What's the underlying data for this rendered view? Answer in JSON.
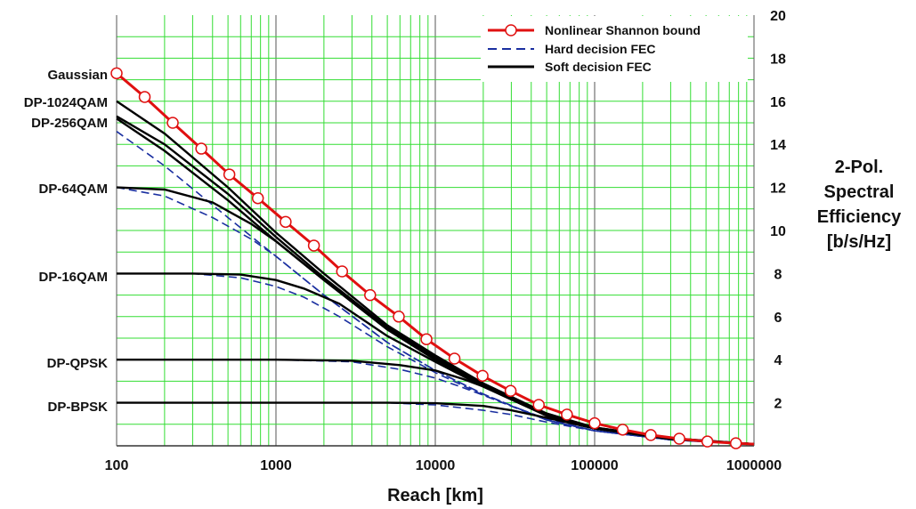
{
  "chart_data": {
    "type": "line",
    "title": "",
    "xlabel": "Reach [km]",
    "ylabel": [
      "2-Pol.",
      "Spectral",
      "Efficiency",
      "[b/s/Hz]"
    ],
    "xscale": "log",
    "xlim": [
      100,
      1000000
    ],
    "ylim": [
      0,
      20
    ],
    "x_ticks": [
      100,
      1000,
      10000,
      100000,
      1000000
    ],
    "x_tick_labels": [
      "100",
      "1000",
      "10000",
      "100000",
      "1000000"
    ],
    "y_ticks": [
      2,
      4,
      6,
      8,
      10,
      12,
      14,
      16,
      18,
      20
    ],
    "y_tick_labels": [
      "2",
      "4",
      "6",
      "8",
      "10",
      "12",
      "14",
      "16",
      "18",
      "20"
    ],
    "y_axis_side": "right",
    "grid": true,
    "legend_position": "top-right",
    "legend": [
      {
        "key": "shannon",
        "label": "Nonlinear Shannon bound",
        "color": "#e01010",
        "style": "solid-circles"
      },
      {
        "key": "hard",
        "label": "Hard decision FEC",
        "color": "#1a2fa0",
        "style": "dashed"
      },
      {
        "key": "soft",
        "label": "Soft decision FEC",
        "color": "#000000",
        "style": "solid"
      }
    ],
    "modulation_labels": [
      {
        "label": "Gaussian",
        "y": 17.3
      },
      {
        "label": "DP-1024QAM",
        "y": 15.9
      },
      {
        "label": "DP-256QAM",
        "y": 15.0
      },
      {
        "label": "DP-64QAM",
        "y": 12.0
      },
      {
        "label": "DP-16QAM",
        "y": 8.0
      },
      {
        "label": "DP-QPSK",
        "y": 4.0
      },
      {
        "label": "DP-BPSK",
        "y": 2.0
      }
    ],
    "series": [
      {
        "name": "Nonlinear Shannon bound",
        "kind": "shannon",
        "color": "#e01010",
        "x": [
          100,
          150,
          225,
          340,
          510,
          770,
          1150,
          1730,
          2600,
          3900,
          5900,
          8800,
          13200,
          19800,
          29700,
          44600,
          67000,
          100000,
          150000,
          225000,
          340000,
          510000,
          770000,
          1000000
        ],
        "y": [
          17.3,
          16.2,
          15.0,
          13.8,
          12.6,
          11.5,
          10.4,
          9.3,
          8.1,
          7.0,
          6.0,
          4.95,
          4.05,
          3.25,
          2.55,
          1.9,
          1.45,
          1.05,
          0.75,
          0.5,
          0.33,
          0.2,
          0.12,
          0.08
        ]
      },
      {
        "name": "Soft decision FEC - Gaussian",
        "kind": "soft",
        "color": "#000000",
        "x": [
          100,
          200,
          500,
          1000,
          2000,
          5000,
          10000,
          20000,
          50000,
          100000,
          300000,
          1000000
        ],
        "y": [
          16.0,
          14.5,
          12.0,
          9.9,
          8.0,
          5.6,
          4.2,
          2.9,
          1.5,
          0.85,
          0.35,
          0.08
        ]
      },
      {
        "name": "Soft decision FEC - DP-1024QAM",
        "kind": "soft",
        "color": "#000000",
        "x": [
          100,
          200,
          500,
          1000,
          2000,
          5000,
          10000,
          20000,
          50000,
          100000,
          300000,
          1000000
        ],
        "y": [
          15.3,
          14.0,
          11.7,
          9.7,
          7.8,
          5.5,
          4.1,
          2.85,
          1.45,
          0.85,
          0.35,
          0.08
        ]
      },
      {
        "name": "Soft decision FEC - DP-256QAM",
        "kind": "soft",
        "color": "#000000",
        "x": [
          100,
          200,
          500,
          1000,
          2000,
          5000,
          10000,
          20000,
          50000,
          100000,
          300000,
          1000000
        ],
        "y": [
          15.2,
          13.7,
          11.4,
          9.5,
          7.7,
          5.4,
          4.0,
          2.8,
          1.4,
          0.8,
          0.33,
          0.08
        ]
      },
      {
        "name": "Soft decision FEC - DP-64QAM",
        "kind": "soft",
        "color": "#000000",
        "x": [
          100,
          200,
          400,
          700,
          1000,
          2000,
          5000,
          10000,
          20000,
          50000,
          100000,
          300000,
          1000000
        ],
        "y": [
          12.0,
          11.9,
          11.3,
          10.3,
          9.5,
          7.7,
          5.4,
          4.0,
          2.75,
          1.4,
          0.8,
          0.33,
          0.08
        ]
      },
      {
        "name": "Soft decision FEC - DP-16QAM",
        "kind": "soft",
        "color": "#000000",
        "x": [
          100,
          300,
          600,
          1000,
          1500,
          2500,
          5000,
          10000,
          20000,
          50000,
          100000,
          300000,
          1000000
        ],
        "y": [
          8.0,
          8.0,
          7.95,
          7.7,
          7.3,
          6.6,
          5.1,
          3.9,
          2.75,
          1.4,
          0.8,
          0.32,
          0.08
        ]
      },
      {
        "name": "Soft decision FEC - DP-QPSK",
        "kind": "soft",
        "color": "#000000",
        "x": [
          100,
          1000,
          3000,
          6000,
          10000,
          15000,
          20000,
          30000,
          50000,
          100000,
          300000,
          1000000
        ],
        "y": [
          4.0,
          4.0,
          3.95,
          3.75,
          3.5,
          3.1,
          2.75,
          2.2,
          1.5,
          0.8,
          0.32,
          0.08
        ]
      },
      {
        "name": "Soft decision FEC - DP-BPSK",
        "kind": "soft",
        "color": "#000000",
        "x": [
          100,
          5000,
          10000,
          20000,
          30000,
          50000,
          100000,
          300000,
          1000000
        ],
        "y": [
          2.0,
          2.0,
          1.98,
          1.85,
          1.65,
          1.3,
          0.8,
          0.32,
          0.08
        ]
      },
      {
        "name": "Hard decision FEC - Gaussian",
        "kind": "hard",
        "color": "#1a2fa0",
        "x": [
          100,
          200,
          500,
          1000,
          2000,
          5000,
          10000,
          20000,
          50000,
          100000,
          300000,
          1000000
        ],
        "y": [
          14.6,
          13.0,
          10.6,
          8.8,
          7.0,
          4.8,
          3.5,
          2.4,
          1.2,
          0.7,
          0.28,
          0.06
        ]
      },
      {
        "name": "Hard decision FEC - DP-64QAM",
        "kind": "hard",
        "color": "#1a2fa0",
        "x": [
          100,
          200,
          400,
          700,
          1000,
          2000,
          5000,
          10000,
          20000,
          50000,
          100000,
          300000,
          1000000
        ],
        "y": [
          12.0,
          11.6,
          10.6,
          9.6,
          8.8,
          7.0,
          4.8,
          3.5,
          2.4,
          1.2,
          0.7,
          0.28,
          0.06
        ]
      },
      {
        "name": "Hard decision FEC - DP-16QAM",
        "kind": "hard",
        "color": "#1a2fa0",
        "x": [
          100,
          300,
          600,
          1000,
          1500,
          2500,
          5000,
          10000,
          20000,
          50000,
          100000,
          300000,
          1000000
        ],
        "y": [
          8.0,
          8.0,
          7.8,
          7.4,
          6.9,
          6.0,
          4.6,
          3.4,
          2.35,
          1.2,
          0.7,
          0.28,
          0.06
        ]
      },
      {
        "name": "Hard decision FEC - DP-QPSK",
        "kind": "hard",
        "color": "#1a2fa0",
        "x": [
          100,
          1000,
          3000,
          6000,
          10000,
          15000,
          20000,
          30000,
          50000,
          100000,
          300000,
          1000000
        ],
        "y": [
          4.0,
          4.0,
          3.9,
          3.55,
          3.15,
          2.7,
          2.35,
          1.85,
          1.25,
          0.7,
          0.28,
          0.06
        ]
      },
      {
        "name": "Hard decision FEC - DP-BPSK",
        "kind": "hard",
        "color": "#1a2fa0",
        "x": [
          100,
          5000,
          10000,
          20000,
          30000,
          50000,
          100000,
          300000,
          1000000
        ],
        "y": [
          2.0,
          2.0,
          1.9,
          1.65,
          1.45,
          1.1,
          0.7,
          0.28,
          0.06
        ]
      }
    ]
  }
}
